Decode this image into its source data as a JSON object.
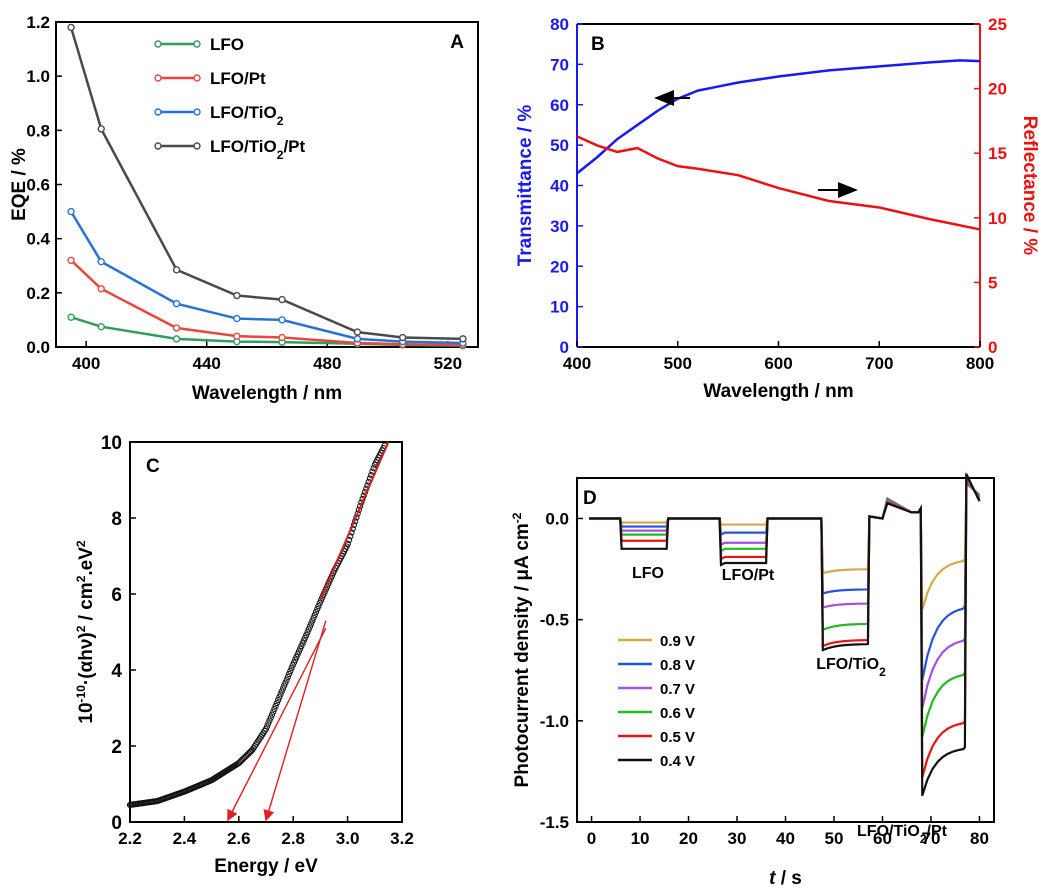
{
  "chart_data": [
    {
      "panel": "A",
      "type": "line",
      "xlabel": "Wavelength / nm",
      "ylabel": "EQE / %",
      "xlim": [
        390,
        530
      ],
      "ylim": [
        0,
        1.2
      ],
      "xticks": [
        400,
        440,
        480,
        520
      ],
      "yticks": [
        0.0,
        0.2,
        0.4,
        0.6,
        0.8,
        1.0,
        1.2
      ],
      "x": [
        395,
        405,
        430,
        450,
        465,
        490,
        505,
        525
      ],
      "series": [
        {
          "name": "LFO",
          "sub": "",
          "post": "",
          "color": "#2e9e5e",
          "values": [
            0.11,
            0.075,
            0.03,
            0.02,
            0.018,
            0.012,
            0.008,
            0.005
          ]
        },
        {
          "name": "LFO/Pt",
          "sub": "",
          "post": "",
          "color": "#e8473d",
          "values": [
            0.32,
            0.215,
            0.07,
            0.04,
            0.035,
            0.015,
            0.01,
            0.008
          ]
        },
        {
          "name": "LFO/TiO",
          "sub": "2",
          "post": "",
          "color": "#2673d6",
          "values": [
            0.5,
            0.315,
            0.16,
            0.105,
            0.1,
            0.03,
            0.02,
            0.015
          ]
        },
        {
          "name": "LFO/TiO",
          "sub": "2",
          "post": "/Pt",
          "color": "#4a4a4a",
          "values": [
            1.18,
            0.805,
            0.285,
            0.19,
            0.175,
            0.055,
            0.035,
            0.03
          ]
        }
      ],
      "legend_position": "top-left"
    },
    {
      "panel": "B",
      "type": "line",
      "xlabel": "Wavelength / nm",
      "ylabel": "Transmittance / %",
      "y2label": "Reflectance / %",
      "xlim": [
        400,
        800
      ],
      "ylim": [
        0,
        80
      ],
      "y2lim": [
        0,
        25
      ],
      "xticks": [
        400,
        500,
        600,
        700,
        800
      ],
      "yticks": [
        0,
        10,
        20,
        30,
        40,
        50,
        60,
        70,
        80
      ],
      "y2ticks": [
        0,
        5,
        10,
        15,
        20,
        25
      ],
      "series": [
        {
          "name": "Transmittance",
          "axis": "left",
          "color": "#1a1af0",
          "x": [
            400,
            420,
            440,
            460,
            480,
            500,
            520,
            540,
            560,
            600,
            650,
            700,
            750,
            780,
            800
          ],
          "values": [
            43,
            47,
            51.5,
            55,
            58.5,
            61.5,
            63.5,
            64.5,
            65.5,
            67,
            68.5,
            69.5,
            70.5,
            71,
            70.8
          ]
        },
        {
          "name": "Reflectance",
          "axis": "right",
          "color": "#ee1111",
          "x": [
            400,
            420,
            440,
            460,
            480,
            500,
            520,
            560,
            600,
            650,
            700,
            750,
            800
          ],
          "values": [
            16.3,
            15.6,
            15.1,
            15.4,
            14.6,
            14.0,
            13.8,
            13.3,
            12.3,
            11.3,
            10.8,
            9.9,
            9.1
          ]
        }
      ],
      "annotations": [
        "arrow-left at Transmittance",
        "arrow-right at Reflectance"
      ]
    },
    {
      "panel": "C",
      "type": "scatter",
      "xlabel": "Energy / eV",
      "ylabel_parts": [
        "10",
        "-10",
        "·(αhν)",
        "2",
        " / cm",
        "2",
        ".eV",
        "2"
      ],
      "xlim": [
        2.2,
        3.2
      ],
      "ylim": [
        0,
        10
      ],
      "xticks": [
        2.2,
        2.4,
        2.6,
        2.8,
        3.0,
        3.2
      ],
      "yticks": [
        0,
        2,
        4,
        6,
        8,
        10
      ],
      "curve": {
        "x": [
          2.2,
          2.3,
          2.4,
          2.5,
          2.6,
          2.65,
          2.7,
          2.75,
          2.8,
          2.85,
          2.9,
          2.95,
          3.0,
          3.05,
          3.1,
          3.15
        ],
        "values": [
          0.45,
          0.55,
          0.8,
          1.1,
          1.55,
          1.9,
          2.45,
          3.3,
          4.15,
          4.95,
          5.8,
          6.6,
          7.3,
          8.4,
          9.4,
          10.1
        ]
      },
      "fit": {
        "color": "#cc2222",
        "x": [
          2.9,
          3.15
        ],
        "values": [
          5.85,
          10.0
        ]
      },
      "tangents": [
        {
          "from": [
            2.92,
            5.1
          ],
          "to": [
            2.56,
            0
          ]
        },
        {
          "from": [
            2.92,
            5.3
          ],
          "to": [
            2.7,
            0
          ]
        }
      ]
    },
    {
      "panel": "D",
      "type": "line",
      "xlabel_italic": "t",
      "xlabel_rest": " / s",
      "ylabel": "Photocurrent density / μA cm",
      "ylabel_sup": "-2",
      "xlim": [
        -3,
        83
      ],
      "ylim": [
        -1.5,
        0.2
      ],
      "xticks": [
        0,
        10,
        20,
        30,
        40,
        50,
        60,
        70,
        80
      ],
      "yticks": [
        0.0,
        -0.5,
        -1.0,
        -1.5
      ],
      "series": [
        {
          "name": "0.9 V",
          "color": "#d9a848",
          "plateaus": [
            -0.02,
            -0.03,
            -0.25,
            -0.2
          ],
          "spikes": [
            -0.02,
            -0.03,
            -0.27,
            -0.45
          ]
        },
        {
          "name": "0.8 V",
          "color": "#2255dd",
          "plateaus": [
            -0.04,
            -0.07,
            -0.35,
            -0.43
          ],
          "spikes": [
            -0.04,
            -0.08,
            -0.37,
            -0.8
          ]
        },
        {
          "name": "0.7 V",
          "color": "#a450e0",
          "plateaus": [
            -0.06,
            -0.12,
            -0.42,
            -0.59
          ],
          "spikes": [
            -0.06,
            -0.13,
            -0.44,
            -0.94
          ]
        },
        {
          "name": "0.6 V",
          "color": "#22bb22",
          "plateaus": [
            -0.08,
            -0.15,
            -0.52,
            -0.76
          ],
          "spikes": [
            -0.08,
            -0.16,
            -0.55,
            -1.08
          ]
        },
        {
          "name": "0.5 V",
          "color": "#ee1111",
          "plateaus": [
            -0.11,
            -0.19,
            -0.6,
            -1.0
          ],
          "spikes": [
            -0.11,
            -0.2,
            -0.63,
            -1.28
          ]
        },
        {
          "name": "0.4 V",
          "color": "#111111",
          "plateaus": [
            -0.15,
            -0.22,
            -0.62,
            -1.13
          ],
          "spikes": [
            -0.15,
            -0.23,
            -0.65,
            -1.37
          ]
        }
      ],
      "segments": [
        {
          "label": "LFO",
          "sub": "",
          "post": "",
          "on": 6,
          "off": 15.5
        },
        {
          "label": "LFO/Pt",
          "sub": "",
          "post": "",
          "on": 26.5,
          "off": 36
        },
        {
          "label": "LFO/TiO",
          "sub": "2",
          "post": "",
          "on": 47.5,
          "off": 57
        },
        {
          "label": "LFO/TiO",
          "sub": "2",
          "post": "/Pt",
          "on": 68,
          "off": 77
        }
      ],
      "legend_position": "bottom-left"
    }
  ]
}
